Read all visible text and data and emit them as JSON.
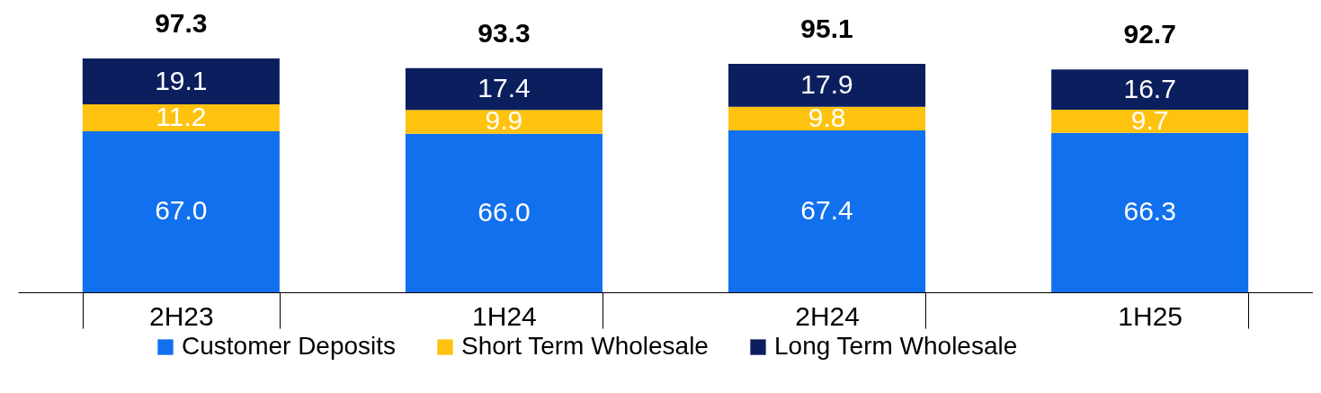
{
  "chart_data": {
    "type": "bar",
    "stacked": true,
    "categories": [
      "2H23",
      "1H24",
      "2H24",
      "1H25"
    ],
    "series": [
      {
        "name": "Customer Deposits",
        "color": "#1170ee",
        "values": [
          67.0,
          66.0,
          67.4,
          66.3
        ],
        "value_labels": [
          "67.0",
          "66.0",
          "67.4",
          "66.3"
        ]
      },
      {
        "name": "Short Term Wholesale",
        "color": "#ffc20e",
        "values": [
          11.2,
          9.9,
          9.8,
          9.7
        ],
        "value_labels": [
          "11.2",
          "9.9",
          "9.8",
          "9.7"
        ]
      },
      {
        "name": "Long Term Wholesale",
        "color": "#0b1f5e",
        "values": [
          19.1,
          17.4,
          17.9,
          16.7
        ],
        "value_labels": [
          "19.1",
          "17.4",
          "17.9",
          "16.7"
        ]
      }
    ],
    "totals": [
      "97.3",
      "93.3",
      "95.1",
      "92.7"
    ],
    "legend": "bottom",
    "grid": false
  }
}
